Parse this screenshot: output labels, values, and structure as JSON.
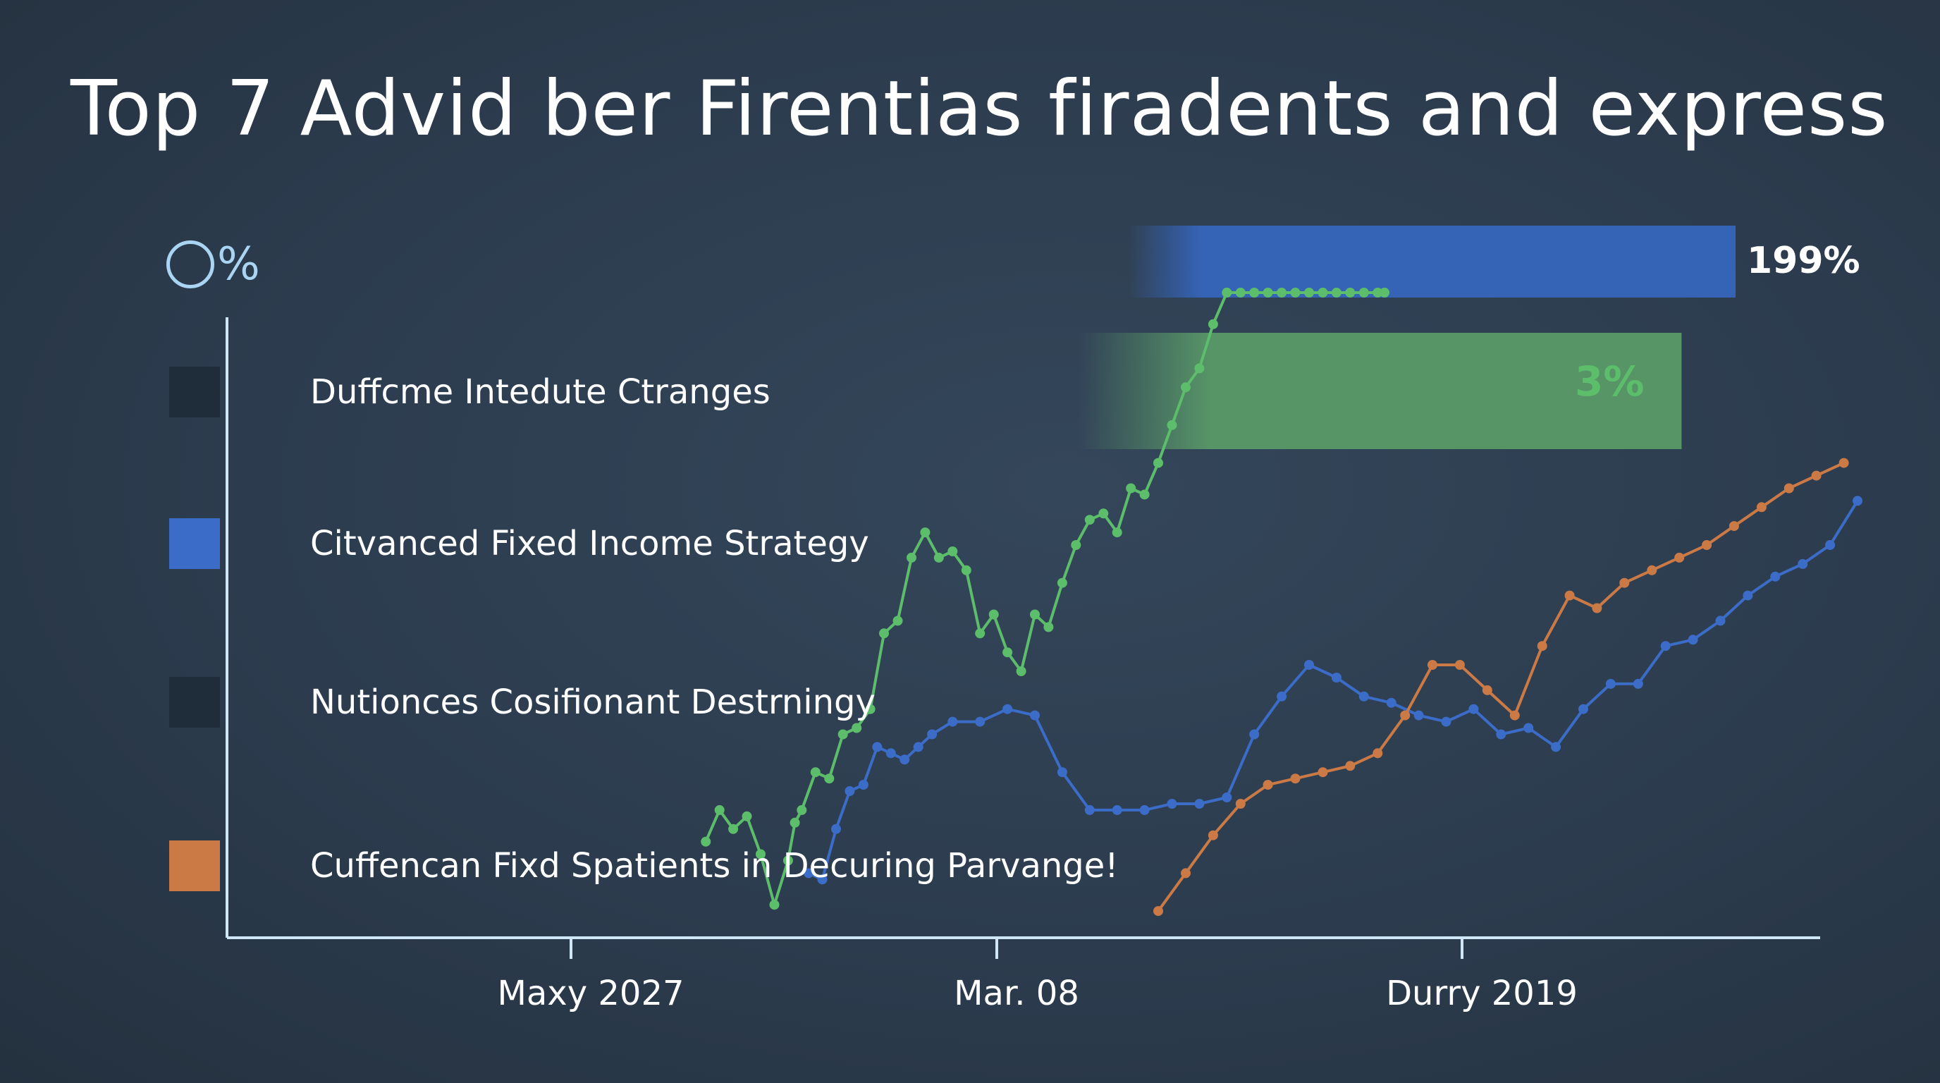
{
  "title": "Top  7 Advid ber Firentias firadents and express",
  "y_unit": "%",
  "legend": [
    {
      "label": "Duffcme Intedute Ctranges",
      "color": "#1f2c3a"
    },
    {
      "label": "Citvanced Fixed Income Strategy",
      "color": "#3b6cc7"
    },
    {
      "label": "Nutionces Cosifionant Destrningy",
      "color": "#1f2c3a"
    },
    {
      "label": "Cuffencan Fixd Spatients in Decuring Parvange!",
      "color": "#cc7a45"
    }
  ],
  "bars": [
    {
      "value_label": "199%",
      "color": "#3563b5",
      "fill": 1.0
    },
    {
      "value_label": "3%",
      "color": "#579567",
      "fill": 0.72
    }
  ],
  "chart_data": {
    "type": "line",
    "title": "Top  7 Advid ber Firentias firadents and express",
    "ylabel": "%",
    "x_ticks": [
      "Maxy 2027",
      "Mar. 08",
      "Durry 2019"
    ],
    "x_range": [
      0,
      100
    ],
    "y_range": [
      0,
      100
    ],
    "grid": false,
    "legend_position": "left",
    "series": [
      {
        "name": "Citvanced Fixed Income Strategy",
        "color": "#3b6cc7",
        "x": [
          23.5,
          24.5,
          25.5,
          26.5,
          27.5,
          28.5,
          29.5,
          30.5,
          31.5,
          32.5,
          34,
          36,
          38,
          40,
          42,
          44,
          46,
          48,
          50,
          52,
          54,
          56,
          58,
          60,
          62,
          64,
          66,
          68,
          70,
          72,
          74,
          76,
          78,
          80,
          82,
          84,
          86,
          88,
          90,
          92,
          94,
          96,
          98,
          100
        ],
        "y": [
          8,
          7,
          15,
          21,
          22,
          28,
          27,
          26,
          28,
          30,
          32,
          32,
          34,
          33,
          24,
          18,
          18,
          18,
          19,
          19,
          20,
          30,
          36,
          41,
          39,
          36,
          35,
          33,
          32,
          34,
          30,
          31,
          28,
          34,
          38,
          38,
          44,
          45,
          48,
          52,
          55,
          57,
          60,
          67
        ]
      },
      {
        "name": "Duffcme Intedute Ctranges",
        "color": "#5cbd6b",
        "x": [
          16,
          17,
          18,
          19,
          20,
          21,
          22,
          22.5,
          23,
          24,
          25,
          26,
          27,
          28,
          29,
          30,
          31,
          32,
          33,
          34,
          35,
          36,
          37,
          38,
          39,
          40,
          41,
          42,
          43,
          44,
          45,
          46,
          47,
          48,
          49,
          50,
          51,
          52,
          53,
          54,
          55,
          56,
          57,
          58,
          59,
          60,
          61,
          62,
          63,
          64,
          65,
          65.5
        ],
        "y": [
          13,
          18,
          15,
          17,
          11,
          3,
          10,
          16,
          18,
          24,
          23,
          30,
          31,
          34,
          46,
          48,
          58,
          62,
          58,
          59,
          56,
          46,
          49,
          43,
          40,
          49,
          47,
          54,
          60,
          64,
          65,
          62,
          69,
          68,
          73,
          79,
          85,
          88,
          95,
          100,
          100,
          100,
          100,
          100,
          100,
          100,
          100,
          100,
          100,
          100,
          100,
          100
        ]
      },
      {
        "name": "Cuffencan Fixd Spatients in Decuring Parvange!",
        "color": "#cc7a45",
        "x": [
          49,
          51,
          53,
          55,
          57,
          59,
          61,
          63,
          65,
          67,
          69,
          71,
          73,
          75,
          77,
          79,
          81,
          83,
          85,
          87,
          89,
          91,
          93,
          95,
          97,
          99
        ],
        "y": [
          2,
          8,
          14,
          19,
          22,
          23,
          24,
          25,
          27,
          33,
          41,
          41,
          37,
          33,
          44,
          52,
          50,
          54,
          56,
          58,
          60,
          63,
          66,
          69,
          71,
          73
        ]
      }
    ]
  }
}
